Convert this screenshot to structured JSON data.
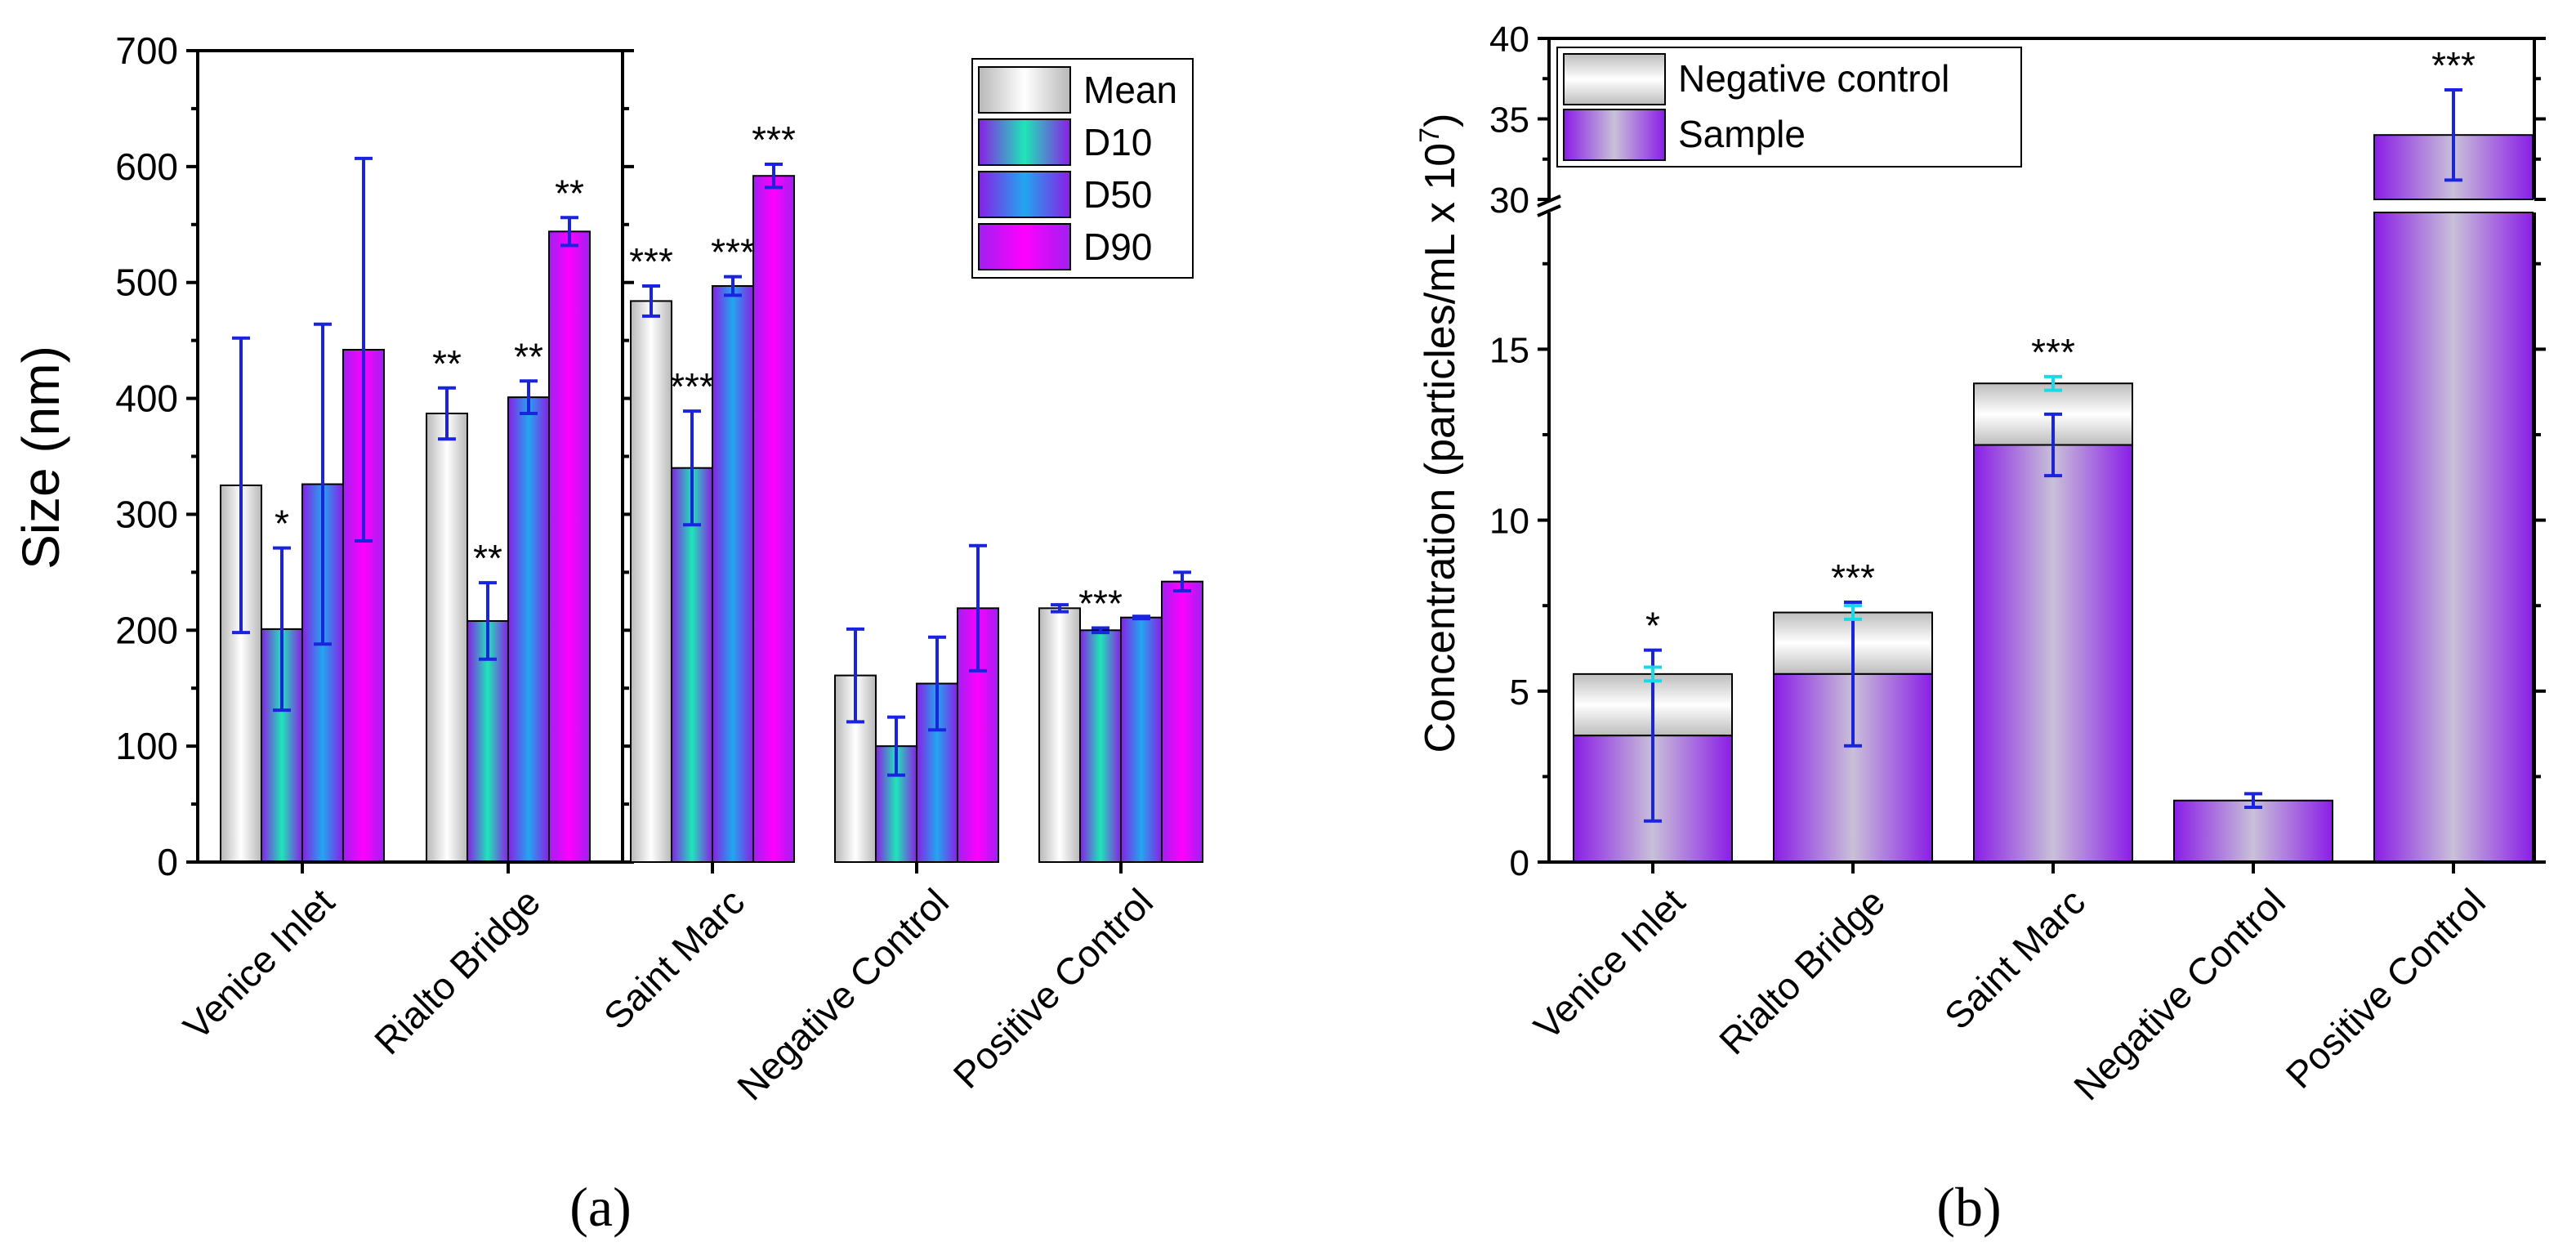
{
  "colors": {
    "err_blue": "#1a24e0",
    "err_cyan": "#19d9e6",
    "mean": "#e6e6e6",
    "d10": "#1ee6a6",
    "d50": "#22a6ef",
    "d90": "#ff00ff",
    "sample": "#8a1ee6",
    "neg": "#d6d6d6"
  },
  "chart_data": [
    {
      "type": "bar",
      "panel_label": "(a)",
      "ylabel": "Size (nm)",
      "ylim": [
        0,
        700
      ],
      "yticks": [
        0,
        100,
        200,
        300,
        400,
        500,
        600,
        700
      ],
      "categories": [
        "Venice Inlet",
        "Rialto Bridge",
        "Saint Marc",
        "Negative Control",
        "Positive Control"
      ],
      "legend": [
        "Mean",
        "D10",
        "D50",
        "D90"
      ],
      "series": [
        {
          "name": "Mean",
          "values": [
            325,
            387,
            484,
            161,
            219
          ],
          "errors": [
            127,
            22,
            13,
            40,
            3
          ],
          "sig": [
            "",
            "**",
            "***",
            "",
            ""
          ]
        },
        {
          "name": "D10",
          "values": [
            201,
            208,
            340,
            100,
            200
          ],
          "errors": [
            70,
            33,
            49,
            25,
            2
          ],
          "sig": [
            "*",
            "**",
            "***",
            "",
            "***"
          ]
        },
        {
          "name": "D50",
          "values": [
            326,
            401,
            497,
            154,
            211
          ],
          "errors": [
            138,
            14,
            8,
            40,
            1
          ],
          "sig": [
            "",
            "**",
            "***",
            "",
            ""
          ]
        },
        {
          "name": "D90",
          "values": [
            442,
            544,
            592,
            219,
            242
          ],
          "errors": [
            165,
            12,
            10,
            54,
            8
          ],
          "sig": [
            "",
            "**",
            "***",
            "",
            ""
          ]
        }
      ]
    },
    {
      "type": "bar",
      "panel_label": "(b)",
      "ylabel": "Concentration (particles/mL x 10",
      "ylabel_sup": "7",
      "ylabel_close": ")",
      "axis_break": [
        19,
        30
      ],
      "ylim_lower": [
        0,
        19
      ],
      "ylim_upper": [
        30,
        40
      ],
      "yticks_lower": [
        0,
        5,
        10,
        15
      ],
      "yticks_upper": [
        30,
        35,
        40
      ],
      "categories": [
        "Venice Inlet",
        "Rialto Bridge",
        "Saint Marc",
        "Negative Control",
        "Positive Control"
      ],
      "legend": [
        "Negative control",
        "Sample"
      ],
      "series": [
        {
          "name": "Negative control",
          "values": [
            5.5,
            7.3,
            14.0,
            null,
            null
          ],
          "errors": [
            0.2,
            0.2,
            0.2,
            null,
            null
          ]
        },
        {
          "name": "Sample",
          "values": [
            3.7,
            5.5,
            12.2,
            1.8,
            34.0
          ],
          "errors": [
            2.5,
            2.1,
            0.9,
            0.2,
            2.8
          ]
        }
      ],
      "sig": [
        "*",
        "***",
        "***",
        "",
        "***"
      ]
    }
  ]
}
